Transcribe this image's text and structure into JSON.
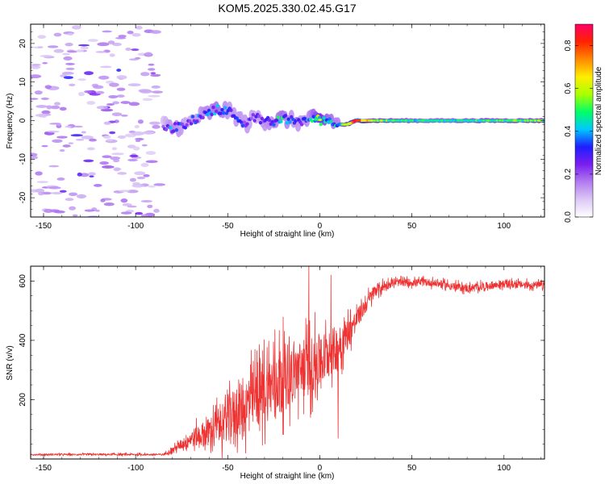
{
  "chart_data": [
    {
      "type": "heatmap",
      "title": "KOM5.2025.330.02.45.G17",
      "xlabel": "Height of straight line (km)",
      "ylabel": "Frequency (Hz)",
      "xlim": [
        -157,
        122
      ],
      "ylim": [
        -25,
        25
      ],
      "xticks": [
        -150,
        -100,
        -50,
        0,
        50,
        100
      ],
      "xtick_labels": [
        "-150",
        "-100",
        "-50",
        "0",
        "50",
        "100"
      ],
      "yticks": [
        -20,
        -10,
        0,
        10,
        20
      ],
      "ytick_labels": [
        "-20",
        "-10",
        "0",
        "10",
        "20"
      ],
      "colorbar": {
        "label": "Normalized spectral amplitude",
        "range": [
          0,
          0.9
        ],
        "ticks": [
          0,
          0.2,
          0.4,
          0.6,
          0.8
        ],
        "tick_labels": [
          "0.0",
          "0.2",
          "0.4",
          "0.6",
          "0.8"
        ],
        "colors": [
          "#ffffff",
          "#dcc8f5",
          "#b27cf0",
          "#7a1ef0",
          "#1e1eff",
          "#00c8ff",
          "#00ff66",
          "#aaff00",
          "#ffee00",
          "#ff8800",
          "#ff2200",
          "#ff0066"
        ]
      },
      "description_points": {
        "noise_region_km": [
          -157,
          -87
        ],
        "noise_level": 0.12,
        "signal_track": [
          {
            "x": -85,
            "y": -1,
            "amp": 0.2
          },
          {
            "x": -80,
            "y": -2,
            "amp": 0.35
          },
          {
            "x": -72,
            "y": -1,
            "amp": 0.25
          },
          {
            "x": -66,
            "y": 1,
            "amp": 0.3
          },
          {
            "x": -60,
            "y": 2,
            "amp": 0.35
          },
          {
            "x": -55,
            "y": 3,
            "amp": 0.4
          },
          {
            "x": -50,
            "y": 2.5,
            "amp": 0.3
          },
          {
            "x": -45,
            "y": 1,
            "amp": 0.3
          },
          {
            "x": -40,
            "y": -1,
            "amp": 0.3
          },
          {
            "x": -35,
            "y": 1,
            "amp": 0.25
          },
          {
            "x": -30,
            "y": 0,
            "amp": 0.3
          },
          {
            "x": -25,
            "y": 0,
            "amp": 0.35
          },
          {
            "x": -20,
            "y": 0.5,
            "amp": 0.4
          },
          {
            "x": -15,
            "y": 0,
            "amp": 0.3
          },
          {
            "x": -10,
            "y": -0.5,
            "amp": 0.3
          },
          {
            "x": -5,
            "y": 0.5,
            "amp": 0.35
          },
          {
            "x": 0,
            "y": 0,
            "amp": 0.55
          },
          {
            "x": 5,
            "y": 0.5,
            "amp": 0.4
          },
          {
            "x": 10,
            "y": -1,
            "amp": 0.35
          },
          {
            "x": 15,
            "y": -1,
            "amp": 0.6
          },
          {
            "x": 20,
            "y": 0,
            "amp": 0.85
          },
          {
            "x": 30,
            "y": 0,
            "amp": 0.55
          },
          {
            "x": 50,
            "y": 0,
            "amp": 0.45
          },
          {
            "x": 70,
            "y": 0,
            "amp": 0.45
          },
          {
            "x": 90,
            "y": 0,
            "amp": 0.5
          },
          {
            "x": 110,
            "y": 0,
            "amp": 0.5
          },
          {
            "x": 122,
            "y": 0,
            "amp": 0.55
          }
        ]
      }
    },
    {
      "type": "line",
      "xlabel": "Height of straight line (km)",
      "ylabel": "SNR (v/v)",
      "xlim": [
        -157,
        122
      ],
      "ylim": [
        0,
        650
      ],
      "xticks": [
        -150,
        -100,
        -50,
        0,
        50,
        100
      ],
      "xtick_labels": [
        "-150",
        "-100",
        "-50",
        "0",
        "50",
        "100"
      ],
      "yticks": [
        200,
        400,
        600
      ],
      "ytick_labels": [
        "200",
        "400",
        "600"
      ],
      "color": "#ee3333",
      "series_envelope": [
        {
          "x": -157,
          "mean": 15,
          "jitter": 5
        },
        {
          "x": -85,
          "mean": 15,
          "jitter": 6
        },
        {
          "x": -80,
          "mean": 30,
          "jitter": 15
        },
        {
          "x": -70,
          "mean": 70,
          "jitter": 50
        },
        {
          "x": -60,
          "mean": 90,
          "jitter": 90
        },
        {
          "x": -50,
          "mean": 140,
          "jitter": 140
        },
        {
          "x": -40,
          "mean": 180,
          "jitter": 170
        },
        {
          "x": -30,
          "mean": 230,
          "jitter": 200
        },
        {
          "x": -20,
          "mean": 280,
          "jitter": 200
        },
        {
          "x": -10,
          "mean": 300,
          "jitter": 180
        },
        {
          "x": 0,
          "mean": 330,
          "jitter": 170
        },
        {
          "x": 10,
          "mean": 380,
          "jitter": 130
        },
        {
          "x": 20,
          "mean": 470,
          "jitter": 60
        },
        {
          "x": 30,
          "mean": 570,
          "jitter": 40
        },
        {
          "x": 40,
          "mean": 595,
          "jitter": 22
        },
        {
          "x": 60,
          "mean": 595,
          "jitter": 22
        },
        {
          "x": 80,
          "mean": 575,
          "jitter": 24
        },
        {
          "x": 100,
          "mean": 590,
          "jitter": 22
        },
        {
          "x": 122,
          "mean": 585,
          "jitter": 22
        }
      ],
      "spikes": [
        {
          "x": -6,
          "y": 650
        },
        {
          "x": -5,
          "y": 140
        },
        {
          "x": 6,
          "y": 620
        },
        {
          "x": 10,
          "y": 70
        }
      ]
    }
  ]
}
